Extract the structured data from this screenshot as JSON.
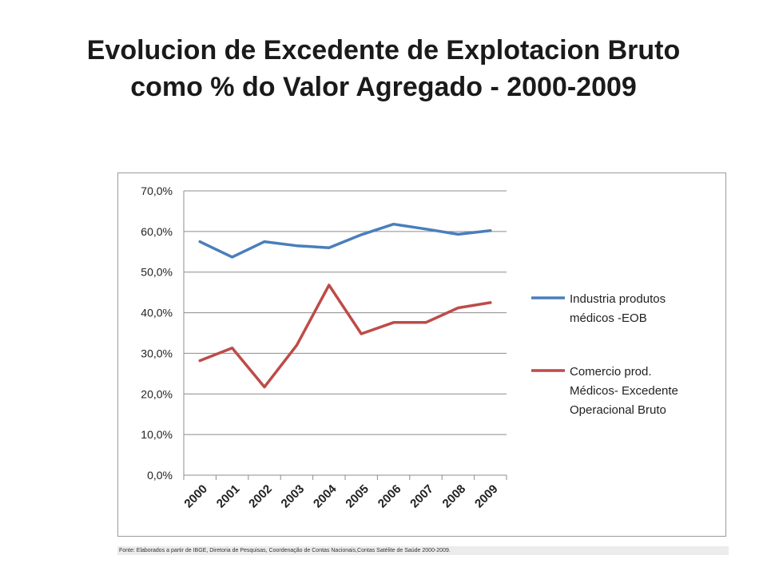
{
  "title": {
    "line1": "Evolucion de Excedente de Explotacion Bruto",
    "line2": "como % do Valor Agregado - 2000-2009"
  },
  "source_note": "Fonte: Elaborados a partir de IBGE, Diretoria de Pesquisas, Coordenação de Contas Nacionais,Contas Satélite de Saúde 2000-2009.",
  "chart_data": {
    "type": "line",
    "categories": [
      "2000",
      "2001",
      "2002",
      "2003",
      "2004",
      "2005",
      "2006",
      "2007",
      "2008",
      "2009"
    ],
    "ylim": [
      0,
      70
    ],
    "yticks": [
      0,
      10,
      20,
      30,
      40,
      50,
      60,
      70
    ],
    "ytick_labels": [
      "0,0%",
      "10,0%",
      "20,0%",
      "30,0%",
      "40,0%",
      "50,0%",
      "60,0%",
      "70,0%"
    ],
    "grid": true,
    "legend_position": "right",
    "series": [
      {
        "name": "Industria produtos médicos -EOB",
        "legend_lines": [
          "Industria produtos",
          "médicos -EOB"
        ],
        "color": "#4a7ebb",
        "values": [
          57.5,
          53.7,
          57.5,
          56.5,
          56.0,
          59.2,
          61.8,
          60.6,
          59.3,
          60.2
        ]
      },
      {
        "name": "Comercio prod. Médicos- Excedente Operacional Bruto",
        "legend_lines": [
          "Comercio prod.",
          "Médicos- Excedente",
          "Operacional Bruto"
        ],
        "color": "#be4b48",
        "values": [
          28.2,
          31.3,
          21.7,
          32.0,
          46.8,
          34.8,
          37.6,
          37.6,
          41.2,
          42.5
        ]
      }
    ]
  }
}
